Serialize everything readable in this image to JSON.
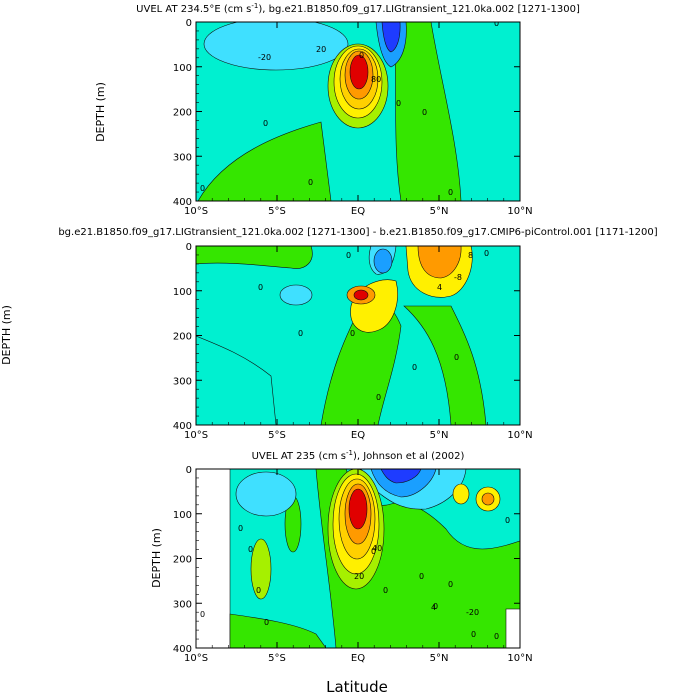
{
  "colors": {
    "red": "#e00000",
    "orange": "#ff9a00",
    "light_orange": "#ffd000",
    "yellow": "#fff000",
    "light_green": "#a6f000",
    "green": "#35e600",
    "cyan": "#00f0d0",
    "light_blue": "#3fe0ff",
    "blue": "#1a9fff",
    "dark_blue": "#1e3cff"
  },
  "chart_data": [
    {
      "type": "heatmap",
      "title": "UVEL AT 234.5°E (cm s",
      "title_sup": "-1",
      "title_rest": "), bg.e21.B1850.f09_g17.LIGtransient_121.0ka.002 [1271-1300]",
      "ylabel": "DEPTH (m)",
      "xlabel": "",
      "xlim": [
        -10,
        10
      ],
      "ylim": [
        400,
        0
      ],
      "xticks": [
        "10°S",
        "5°S",
        "EQ",
        "5°N",
        "10°N"
      ],
      "yticks": [
        "0",
        "100",
        "200",
        "300",
        "400"
      ],
      "features": [
        {
          "name": "undercurrent-core",
          "lat": 0,
          "depth": 110,
          "max": 100
        },
        {
          "name": "south-surface-westward",
          "lat": -4,
          "depth": 20,
          "min": -20
        },
        {
          "name": "north-surface-westward",
          "lat": 2.5,
          "depth": 20,
          "min": -40
        }
      ],
      "contour_labels": [
        "-20",
        "20",
        "0",
        "0",
        "0",
        "0",
        "0",
        "0",
        "0",
        "0",
        "80"
      ]
    },
    {
      "type": "heatmap",
      "title": "bg.e21.B1850.f09_g17.LIGtransient_121.0ka.002 [1271-1300] - b.e21.B1850.f09_g17.CMIP6-piControl.001 [1171-1200]",
      "ylabel": "DEPTH (m)",
      "xlabel": "",
      "xlim": [
        -10,
        10
      ],
      "ylim": [
        400,
        0
      ],
      "xticks": [
        "10°S",
        "5°S",
        "EQ",
        "5°N",
        "10°N"
      ],
      "yticks": [
        "0",
        "100",
        "200",
        "300",
        "400"
      ],
      "features": [
        {
          "name": "diff-undercurrent-positive",
          "lat": 0,
          "depth": 110,
          "max": 20
        },
        {
          "name": "diff-north-positive",
          "lat": 4.5,
          "depth": 30,
          "max": 20
        },
        {
          "name": "diff-surface-negative",
          "lat": 1,
          "depth": 45,
          "min": -20
        }
      ],
      "contour_labels": [
        "-8",
        "4",
        "8",
        "0",
        "0",
        "0",
        "0",
        "0",
        "0",
        "0",
        "0"
      ]
    },
    {
      "type": "heatmap",
      "title": "UVEL AT 235 (cm s",
      "title_sup": "-1",
      "title_rest": "), Johnson et al (2002)",
      "ylabel": "DEPTH (m)",
      "xlabel": "Latitude",
      "xlim": [
        -10,
        10
      ],
      "ylim": [
        400,
        0
      ],
      "xticks": [
        "10°S",
        "5°S",
        "EQ",
        "5°N",
        "10°N"
      ],
      "yticks": [
        "0",
        "100",
        "200",
        "300",
        "400"
      ],
      "features": [
        {
          "name": "obs-undercurrent-core",
          "lat": 0,
          "depth": 90,
          "max": 100
        },
        {
          "name": "obs-surface-westward",
          "lat": 2,
          "depth": 10,
          "min": -40
        }
      ],
      "contour_labels": [
        "-20",
        "20",
        "40",
        "0",
        "0",
        "0",
        "0",
        "0",
        "0",
        "0",
        "0",
        "0",
        "0",
        "0",
        "0",
        "0",
        "4"
      ]
    }
  ]
}
